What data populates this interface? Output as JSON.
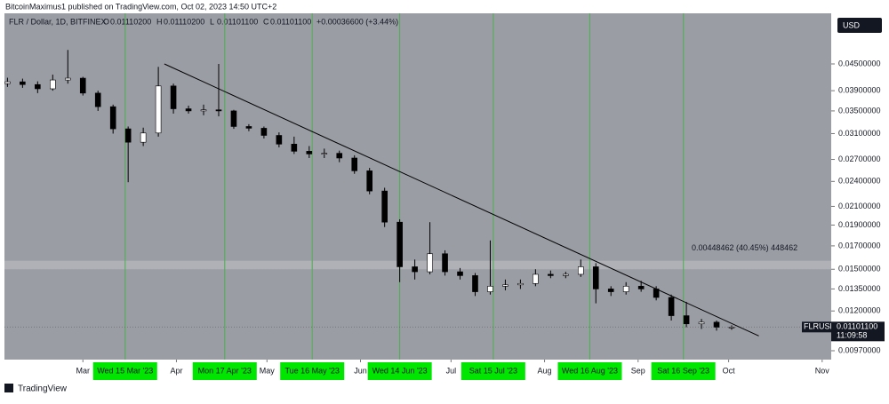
{
  "header": {
    "publisher": "BitcoinMaximus1 published on TradingView.com, Oct 02, 2023 14:50 UTC+2",
    "symbol": "FLR / Dollar, 1D, BITFINEX",
    "ohlc": [
      {
        "label": "O",
        "value": "0.01110200"
      },
      {
        "label": "H",
        "value": "0.01110200"
      },
      {
        "label": "L",
        "value": "0.01101100"
      },
      {
        "label": "C",
        "value": "0.01101100"
      }
    ],
    "change": "+0.00036600 (+3.44%)",
    "currency": "USD",
    "footer": "TradingView"
  },
  "chart_data": {
    "type": "candlestick",
    "log_scale": true,
    "up_color": "#ffffff",
    "down_color": "#000000",
    "background": "#9b9da5",
    "marker_color": "#4caf50",
    "marker_label_color": "#00e600",
    "x": [
      "2023-02-04",
      "2023-02-09",
      "2023-02-14",
      "2023-02-19",
      "2023-02-24",
      "2023-03-01",
      "2023-03-06",
      "2023-03-11",
      "2023-03-16",
      "2023-03-21",
      "2023-03-26",
      "2023-03-31",
      "2023-04-05",
      "2023-04-10",
      "2023-04-15",
      "2023-04-20",
      "2023-04-25",
      "2023-04-30",
      "2023-05-05",
      "2023-05-10",
      "2023-05-15",
      "2023-05-20",
      "2023-05-25",
      "2023-05-30",
      "2023-06-04",
      "2023-06-09",
      "2023-06-14",
      "2023-06-19",
      "2023-06-24",
      "2023-06-29",
      "2023-07-04",
      "2023-07-09",
      "2023-07-14",
      "2023-07-19",
      "2023-07-24",
      "2023-07-29",
      "2023-08-03",
      "2023-08-08",
      "2023-08-13",
      "2023-08-18",
      "2023-08-23",
      "2023-08-28",
      "2023-09-02",
      "2023-09-07",
      "2023-09-12",
      "2023-09-17",
      "2023-09-22",
      "2023-09-27",
      "2023-10-02"
    ],
    "open": [
      0.0405,
      0.0409,
      0.0403,
      0.0394,
      0.0413,
      0.0417,
      0.0385,
      0.0358,
      0.0318,
      0.0296,
      0.0311,
      0.04,
      0.0354,
      0.035,
      0.0352,
      0.035,
      0.0322,
      0.0319,
      0.0307,
      0.0293,
      0.0282,
      0.0278,
      0.0279,
      0.0272,
      0.0254,
      0.0228,
      0.0193,
      0.0152,
      0.0148,
      0.0163,
      0.0148,
      0.0145,
      0.0133,
      0.0137,
      0.0138,
      0.0139,
      0.0146,
      0.0145,
      0.0146,
      0.0152,
      0.0135,
      0.0133,
      0.0137,
      0.0135,
      0.0129,
      0.0117,
      0.0112,
      0.0113,
      0.011
    ],
    "high": [
      0.0418,
      0.0416,
      0.041,
      0.0425,
      0.0485,
      0.042,
      0.039,
      0.0362,
      0.0322,
      0.032,
      0.0443,
      0.0405,
      0.036,
      0.0362,
      0.045,
      0.0352,
      0.0326,
      0.0322,
      0.0312,
      0.0305,
      0.029,
      0.0286,
      0.0283,
      0.0276,
      0.0258,
      0.0232,
      0.0196,
      0.0158,
      0.0193,
      0.0166,
      0.0151,
      0.0147,
      0.0175,
      0.0142,
      0.0142,
      0.015,
      0.0149,
      0.0148,
      0.0158,
      0.0155,
      0.0137,
      0.014,
      0.0141,
      0.0137,
      0.0131,
      0.0126,
      0.0115,
      0.0114,
      0.01111
    ],
    "low": [
      0.0398,
      0.0396,
      0.0385,
      0.039,
      0.0405,
      0.038,
      0.035,
      0.031,
      0.0239,
      0.029,
      0.0305,
      0.0345,
      0.0345,
      0.0342,
      0.034,
      0.0318,
      0.0314,
      0.0302,
      0.0288,
      0.0278,
      0.0272,
      0.0272,
      0.0266,
      0.025,
      0.0224,
      0.0188,
      0.014,
      0.0142,
      0.0146,
      0.0145,
      0.0142,
      0.013,
      0.0131,
      0.0134,
      0.0135,
      0.0137,
      0.0143,
      0.0143,
      0.0144,
      0.0125,
      0.013,
      0.0131,
      0.0133,
      0.0127,
      0.0114,
      0.011,
      0.0109,
      0.0108,
      0.01085
    ],
    "close": [
      0.0409,
      0.0403,
      0.0394,
      0.0413,
      0.0417,
      0.0385,
      0.0358,
      0.0318,
      0.0296,
      0.0311,
      0.04,
      0.0354,
      0.035,
      0.0352,
      0.035,
      0.0322,
      0.0319,
      0.0307,
      0.0293,
      0.0282,
      0.0278,
      0.0279,
      0.0272,
      0.0254,
      0.0228,
      0.0193,
      0.0152,
      0.0148,
      0.0163,
      0.0148,
      0.0145,
      0.0133,
      0.0137,
      0.0138,
      0.0139,
      0.0146,
      0.0145,
      0.0146,
      0.0152,
      0.0135,
      0.0133,
      0.0137,
      0.0135,
      0.0129,
      0.0117,
      0.0112,
      0.0113,
      0.011,
      0.011011
    ],
    "xlim": [
      "2023-02-03",
      "2023-11-04"
    ],
    "xticks": [
      {
        "value": "2023-03-01",
        "label": "Mar"
      },
      {
        "value": "2023-04-01",
        "label": "Apr"
      },
      {
        "value": "2023-05-01",
        "label": "May"
      },
      {
        "value": "2023-06-01",
        "label": "Jun"
      },
      {
        "value": "2023-07-01",
        "label": "Jul"
      },
      {
        "value": "2023-08-01",
        "label": "Aug"
      },
      {
        "value": "2023-09-01",
        "label": "Sep"
      },
      {
        "value": "2023-10-01",
        "label": "Oct"
      },
      {
        "value": "2023-11-01",
        "label": "Nov"
      }
    ],
    "ylim": [
      0.00925,
      0.059
    ],
    "yticks": [
      {
        "value": 0.045,
        "label": "0.04500000"
      },
      {
        "value": 0.039,
        "label": "0.03900000"
      },
      {
        "value": 0.035,
        "label": "0.03500000"
      },
      {
        "value": 0.031,
        "label": "0.03100000"
      },
      {
        "value": 0.027,
        "label": "0.02700000"
      },
      {
        "value": 0.024,
        "label": "0.02400000"
      },
      {
        "value": 0.021,
        "label": "0.02100000"
      },
      {
        "value": 0.019,
        "label": "0.01900000"
      },
      {
        "value": 0.017,
        "label": "0.01700000"
      },
      {
        "value": 0.015,
        "label": "0.01500000"
      },
      {
        "value": 0.0135,
        "label": "0.01350000"
      },
      {
        "value": 0.012,
        "label": "0.01200000"
      },
      {
        "value": 0.0097,
        "label": "0.00970000"
      }
    ],
    "markers": [
      {
        "value": "2023-03-15",
        "label": "Wed 15 Mar '23"
      },
      {
        "value": "2023-04-17",
        "label": "Mon 17 Apr '23"
      },
      {
        "value": "2023-05-16",
        "label": "Tue 16 May '23"
      },
      {
        "value": "2023-06-14",
        "label": "Wed 14 Jun '23"
      },
      {
        "value": "2023-07-15",
        "label": "Sat 15 Jul '23"
      },
      {
        "value": "2023-08-16",
        "label": "Wed 16 Aug '23"
      },
      {
        "value": "2023-09-16",
        "label": "Sat 16 Sep '23"
      }
    ],
    "trendline": {
      "x": [
        "2023-03-28",
        "2023-10-11"
      ],
      "y": [
        0.045,
        0.0105
      ]
    },
    "range_box": {
      "text": "0.00448462 (40.45%) 448462",
      "y": [
        0.015,
        0.0157
      ]
    },
    "price_label": {
      "symbol": "FLRUSD",
      "price": "0.01101100",
      "countdown": "11:09:58"
    }
  }
}
